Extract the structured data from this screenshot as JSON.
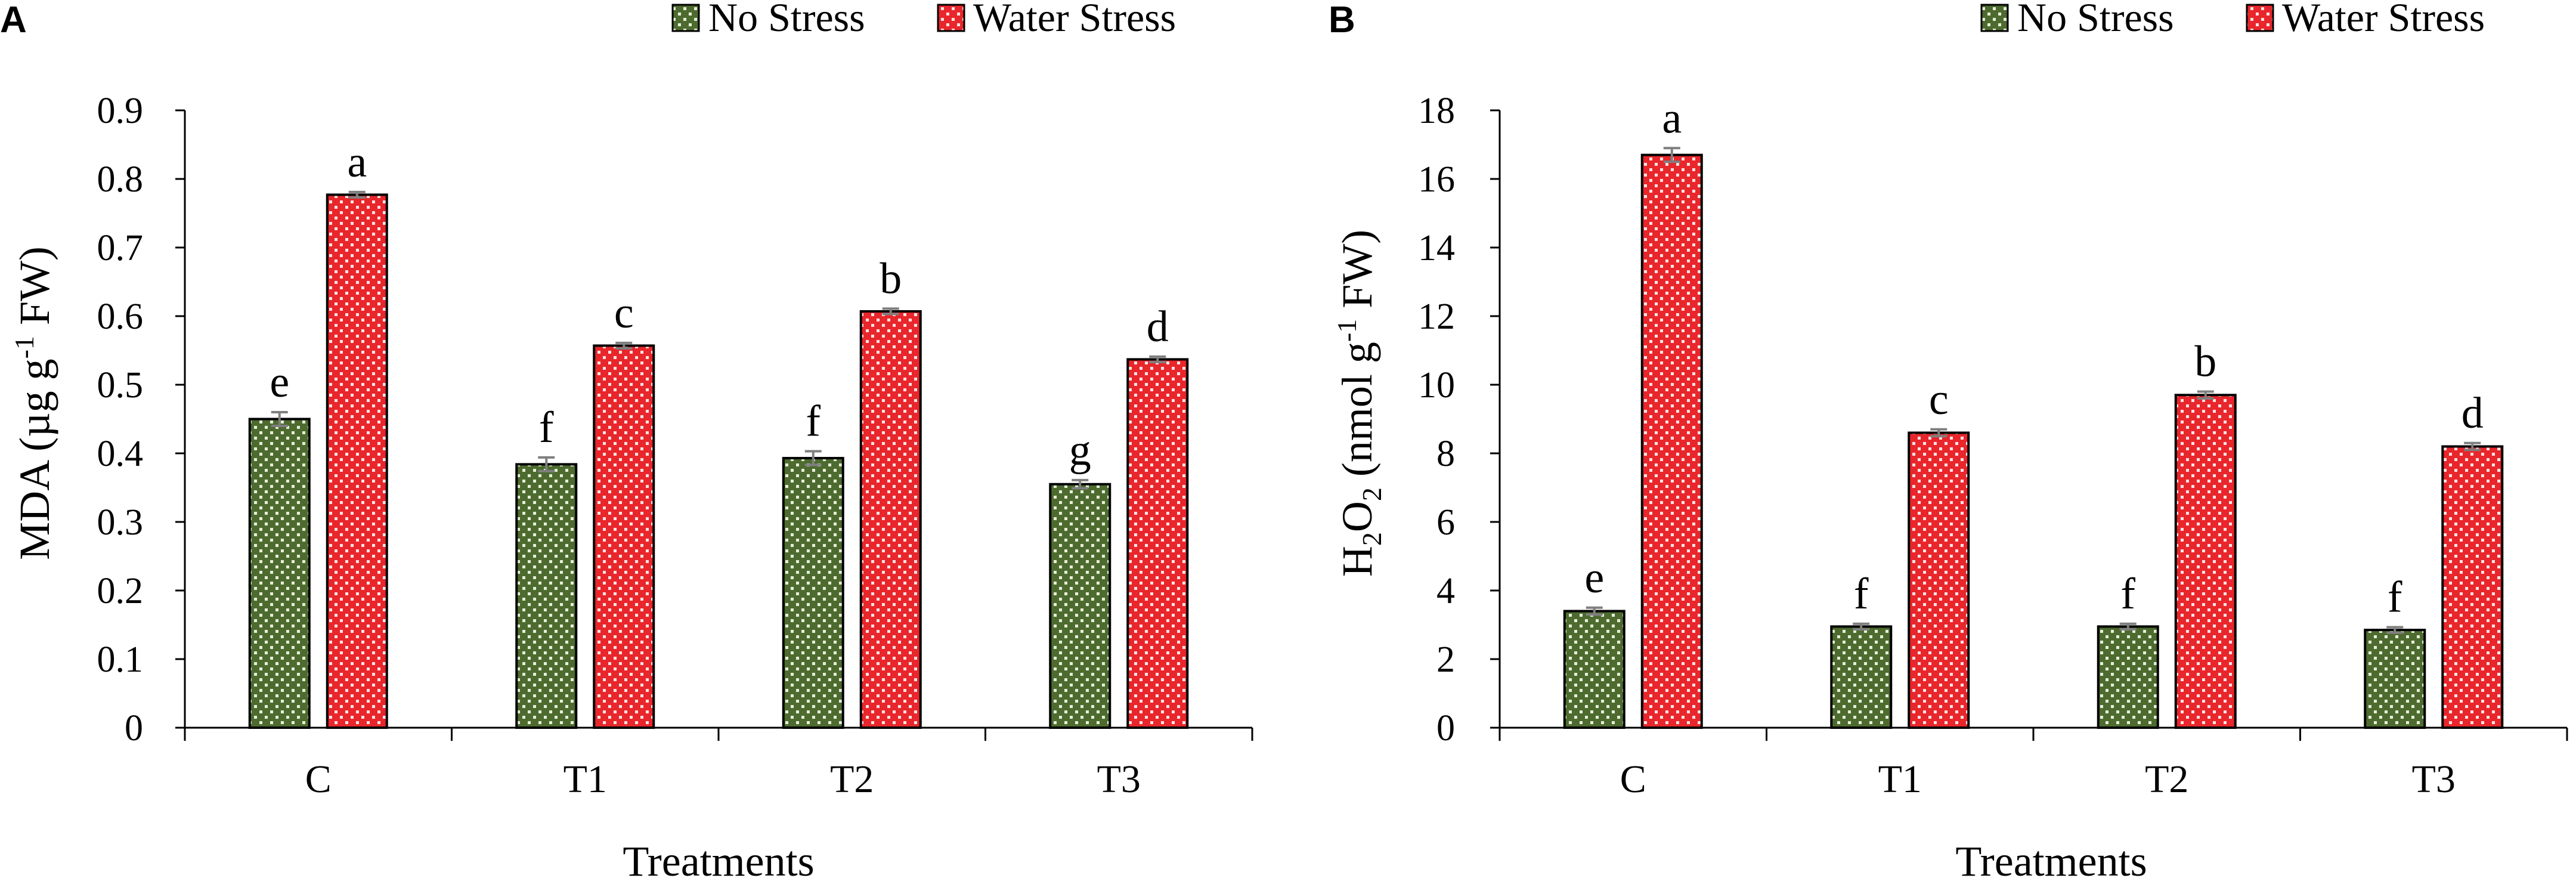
{
  "chart_data": [
    {
      "panel": "A",
      "type": "bar",
      "title": "",
      "xlabel": "Treatments",
      "ylabel": "MDA (µg g-1 FW)",
      "ylabel_parts": {
        "pre": "MDA (µg g",
        "sup": "-1",
        "post": " FW)"
      },
      "ylim": [
        0,
        0.9
      ],
      "yticks": [
        "0",
        "0.1",
        "0.2",
        "0.3",
        "0.4",
        "0.5",
        "0.6",
        "0.7",
        "0.8",
        "0.9"
      ],
      "categories": [
        "C",
        "T1",
        "T2",
        "T3"
      ],
      "series": [
        {
          "name": "No Stress",
          "values": [
            0.45,
            0.384,
            0.393,
            0.355
          ],
          "errors": [
            0.01,
            0.01,
            0.01,
            0.006
          ],
          "labels": [
            "e",
            "f",
            "f",
            "g"
          ]
        },
        {
          "name": "Water Stress",
          "values": [
            0.777,
            0.557,
            0.607,
            0.537
          ],
          "errors": [
            0.004,
            0.004,
            0.004,
            0.004
          ],
          "labels": [
            "a",
            "c",
            "b",
            "d"
          ]
        }
      ],
      "legend": "top-right"
    },
    {
      "panel": "B",
      "type": "bar",
      "title": "",
      "xlabel": "Treatments",
      "ylabel": "H2O2 (nmol g-1 FW)",
      "ylabel_parts": {
        "a": "H",
        "sub1": "2",
        "b": "O",
        "sub2": "2",
        "c": " (nmol g",
        "sup": "-1",
        "d": " FW)"
      },
      "ylim": [
        0,
        18
      ],
      "yticks": [
        "0",
        "2",
        "4",
        "6",
        "8",
        "10",
        "12",
        "14",
        "16",
        "18"
      ],
      "categories": [
        "C",
        "T1",
        "T2",
        "T3"
      ],
      "series": [
        {
          "name": "No Stress",
          "values": [
            3.4,
            2.95,
            2.95,
            2.85
          ],
          "errors": [
            0.1,
            0.08,
            0.08,
            0.08
          ],
          "labels": [
            "e",
            "f",
            "f",
            "f"
          ]
        },
        {
          "name": "Water Stress",
          "values": [
            16.7,
            8.6,
            9.7,
            8.2
          ],
          "errors": [
            0.2,
            0.1,
            0.1,
            0.1
          ],
          "labels": [
            "a",
            "c",
            "b",
            "d"
          ]
        }
      ],
      "legend": "top-right"
    }
  ],
  "colors": {
    "no_stress_base": "#4d6b2f",
    "no_stress_dot": "#e6eed8",
    "water_stress_base": "#e8262b",
    "water_stress_dot": "#fbe3e3",
    "error_bar": "#7f7f7f"
  }
}
